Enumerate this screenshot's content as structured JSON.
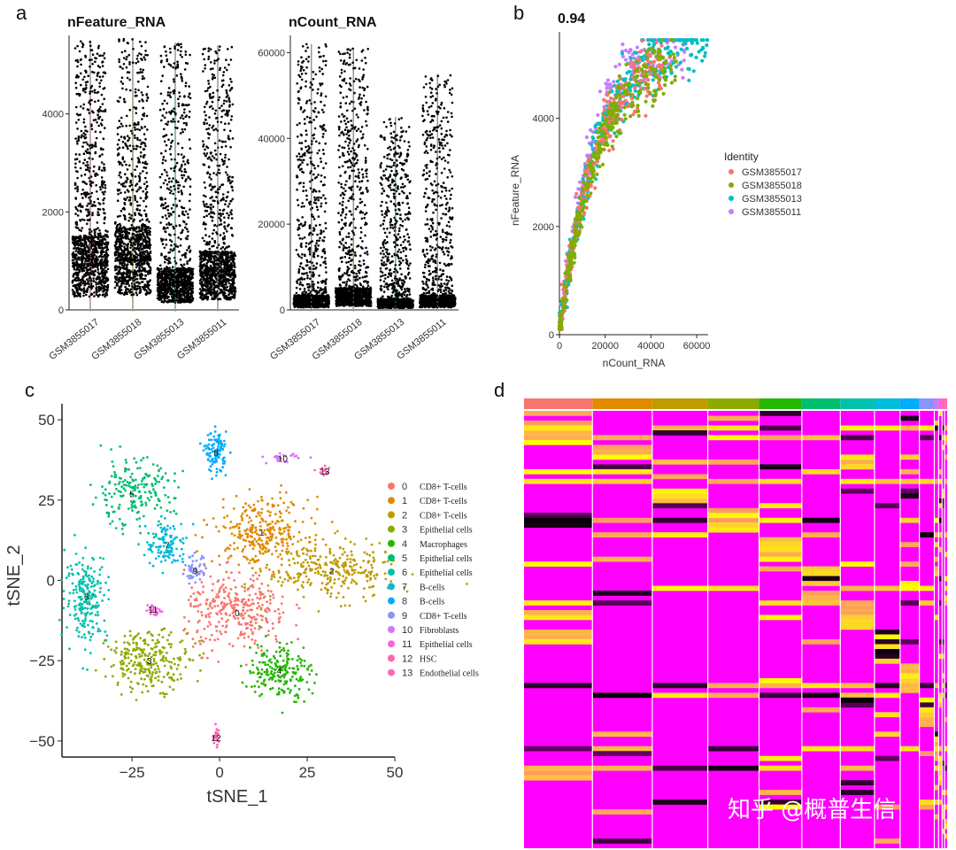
{
  "watermark": "知乎 @概普生信",
  "chart_data": [
    {
      "panel": "a",
      "type": "violin",
      "charts": [
        {
          "title": "nFeature_RNA",
          "categories": [
            "GSM3855017",
            "GSM3855018",
            "GSM3855013",
            "GSM3855011"
          ],
          "colors": [
            "#F8766D",
            "#7CAE00",
            "#00BFC4",
            "#C77CFF"
          ],
          "ylim": [
            0,
            5600
          ],
          "yticks": [
            "0",
            "2000",
            "4000"
          ],
          "max_values": [
            5500,
            5550,
            5450,
            5400
          ],
          "median_values": [
            900,
            1000,
            500,
            700
          ]
        },
        {
          "title": "nCount_RNA",
          "categories": [
            "GSM3855017",
            "GSM3855018",
            "GSM3855013",
            "GSM3855011"
          ],
          "colors": [
            "#F8766D",
            "#7CAE00",
            "#00BFC4",
            "#C77CFF"
          ],
          "ylim": [
            0,
            64000
          ],
          "yticks": [
            "0",
            "20000",
            "40000",
            "60000"
          ],
          "max_values": [
            62000,
            61000,
            45000,
            55000
          ],
          "median_values": [
            2000,
            3000,
            1500,
            2000
          ]
        }
      ]
    },
    {
      "panel": "b",
      "type": "scatter",
      "title": "0.94",
      "xlabel": "nCount_RNA",
      "ylabel": "nFeature_RNA",
      "xlim": [
        0,
        65000
      ],
      "ylim": [
        0,
        5600
      ],
      "xticks": [
        "0",
        "20000",
        "40000",
        "60000"
      ],
      "yticks": [
        "0",
        "2000",
        "4000"
      ],
      "legend_title": "Identity",
      "series": [
        {
          "name": "GSM3855017",
          "color": "#F8766D"
        },
        {
          "name": "GSM3855018",
          "color": "#7CAE00"
        },
        {
          "name": "GSM3855013",
          "color": "#00BFC4"
        },
        {
          "name": "GSM3855011",
          "color": "#C77CFF"
        }
      ]
    },
    {
      "panel": "c",
      "type": "scatter",
      "xlabel": "tSNE_1",
      "ylabel": "tSNE_2",
      "xlim": [
        -45,
        50
      ],
      "ylim": [
        -55,
        55
      ],
      "xticks": [
        "-25",
        "0",
        "25",
        "50"
      ],
      "yticks": [
        "-50",
        "-25",
        "0",
        "25",
        "50"
      ],
      "clusters": [
        {
          "id": "0",
          "label": "CD8+ T-cells",
          "color": "#F8766D",
          "center": [
            5,
            -10
          ]
        },
        {
          "id": "1",
          "label": "CD8+ T-cells",
          "color": "#E18A00",
          "center": [
            12,
            15
          ]
        },
        {
          "id": "2",
          "label": "CD8+ T-cells",
          "color": "#BE9C00",
          "center": [
            32,
            3
          ]
        },
        {
          "id": "3",
          "label": "Epithelial cells",
          "color": "#8CAB00",
          "center": [
            -20,
            -25
          ]
        },
        {
          "id": "4",
          "label": "Macrophages",
          "color": "#24B700",
          "center": [
            17,
            -28
          ]
        },
        {
          "id": "5",
          "label": "Epithelial cells",
          "color": "#00BE70",
          "center": [
            -25,
            27
          ]
        },
        {
          "id": "6",
          "label": "Epithelial cells",
          "color": "#00C1AB",
          "center": [
            -38,
            -5
          ]
        },
        {
          "id": "7",
          "label": "B-cells",
          "color": "#00BBDA",
          "center": [
            -15,
            11
          ]
        },
        {
          "id": "8",
          "label": "B-cells",
          "color": "#00ACFC",
          "center": [
            -1,
            40
          ]
        },
        {
          "id": "9",
          "label": "CD8+ T-cells",
          "color": "#8B93FF",
          "center": [
            -7,
            3
          ]
        },
        {
          "id": "10",
          "label": "Fibroblasts",
          "color": "#D575FE",
          "center": [
            18,
            38
          ]
        },
        {
          "id": "11",
          "label": "Epithelial cells",
          "color": "#F962DD",
          "center": [
            -19,
            -9
          ]
        },
        {
          "id": "12",
          "label": "HSC",
          "color": "#FF65AC",
          "center": [
            -1,
            -49
          ]
        },
        {
          "id": "13",
          "label": "Endothelial cells",
          "color": "#FF69B4",
          "center": [
            30,
            34
          ]
        }
      ]
    },
    {
      "panel": "d",
      "type": "heatmap",
      "low_color": "#FF00FF",
      "mid_color": "#000000",
      "high_color": "#FFFF00",
      "cluster_bar_colors": [
        "#F8766D",
        "#E18A00",
        "#BE9C00",
        "#8CAB00",
        "#24B700",
        "#00BE70",
        "#00C1AB",
        "#00BBDA",
        "#00ACFC",
        "#8B93FF",
        "#D575FE",
        "#F962DD",
        "#FF65AC",
        "#FF69B4"
      ]
    }
  ]
}
